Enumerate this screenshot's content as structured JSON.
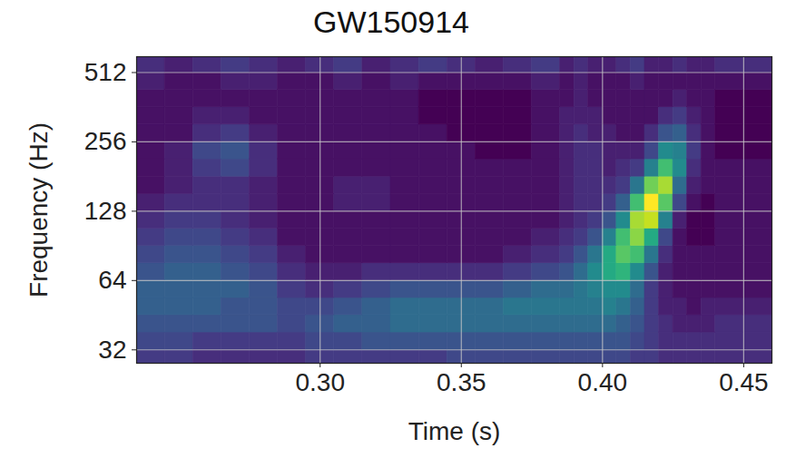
{
  "chart_data": {
    "type": "heatmap",
    "title": "GW150914",
    "x_label": "Time (s)",
    "y_label": "Frequency (Hz)",
    "xlim": [
      0.235,
      0.46
    ],
    "ylim": [
      28,
      600
    ],
    "xticks": [
      {
        "value": 0.3,
        "label": "0.30"
      },
      0.35,
      {
        "value": 0.4,
        "label": "0.40"
      },
      0.45
    ],
    "yticks": [
      32,
      64,
      128,
      256,
      512
    ],
    "log": "y",
    "grid": true,
    "color": "viridis",
    "x_edges": [
      0.235,
      0.245,
      0.255,
      0.265,
      0.275,
      0.285,
      0.295,
      0.305,
      0.315,
      0.325,
      0.335,
      0.345,
      0.355,
      0.365,
      0.375,
      0.385,
      0.39,
      0.395,
      0.4,
      0.405,
      0.41,
      0.415,
      0.42,
      0.425,
      0.43,
      0.435,
      0.44,
      0.45,
      0.46
    ],
    "y_edges": [
      26.9,
      32,
      38.1,
      45.3,
      53.8,
      64,
      76.1,
      90.5,
      107.6,
      128,
      152.2,
      181,
      215.3,
      256,
      304.4,
      362,
      430.5,
      512,
      608.9
    ],
    "z": [
      [
        6,
        6,
        5,
        5,
        5,
        5,
        6,
        6,
        6,
        6,
        6,
        7,
        7,
        7,
        7,
        7,
        7,
        7,
        7,
        7,
        6,
        6,
        5,
        5,
        5,
        5,
        5,
        5
      ],
      [
        7,
        7,
        6,
        6,
        6,
        6,
        7,
        7,
        8,
        8,
        8,
        8,
        8,
        8,
        8,
        8,
        8,
        8,
        8,
        8,
        7,
        6,
        5,
        5,
        5,
        5,
        5,
        5
      ],
      [
        8,
        8,
        8,
        8,
        8,
        7,
        8,
        9,
        9,
        10,
        10,
        10,
        10,
        10,
        10,
        10,
        10,
        10,
        10,
        9,
        8,
        6,
        5,
        4,
        4,
        4,
        5,
        5
      ],
      [
        9,
        9,
        9,
        8,
        8,
        7,
        7,
        8,
        9,
        10,
        10,
        10,
        10,
        11,
        11,
        11,
        11,
        11,
        12,
        11,
        9,
        6,
        4,
        4,
        3,
        4,
        4,
        4
      ],
      [
        9,
        9,
        9,
        9,
        8,
        6,
        5,
        6,
        7,
        8,
        8,
        8,
        8,
        9,
        10,
        10,
        11,
        12,
        13,
        13,
        10,
        6,
        4,
        3,
        3,
        3,
        3,
        3
      ],
      [
        8,
        9,
        9,
        8,
        7,
        5,
        4,
        4,
        5,
        5,
        5,
        5,
        5,
        6,
        7,
        8,
        10,
        13,
        16,
        17,
        13,
        8,
        4,
        3,
        3,
        3,
        3,
        3
      ],
      [
        7,
        8,
        8,
        7,
        6,
        4,
        3,
        3,
        3,
        3,
        3,
        3,
        3,
        4,
        5,
        6,
        8,
        11,
        16,
        19,
        18,
        11,
        5,
        3,
        3,
        3,
        3,
        3
      ],
      [
        6,
        7,
        7,
        6,
        5,
        3,
        3,
        3,
        3,
        3,
        3,
        3,
        3,
        3,
        4,
        5,
        6,
        8,
        12,
        18,
        21,
        16,
        7,
        3,
        2,
        2,
        3,
        3
      ],
      [
        5,
        6,
        6,
        5,
        4,
        3,
        3,
        3,
        3,
        3,
        3,
        3,
        3,
        3,
        3,
        4,
        5,
        6,
        8,
        13,
        22,
        23,
        12,
        4,
        2,
        2,
        3,
        3
      ],
      [
        4,
        5,
        5,
        5,
        4,
        3,
        3,
        4,
        4,
        3,
        3,
        3,
        3,
        3,
        3,
        4,
        5,
        5,
        6,
        9,
        18,
        25,
        19,
        7,
        3,
        2,
        3,
        3
      ],
      [
        3,
        4,
        5,
        5,
        4,
        3,
        3,
        4,
        4,
        3,
        3,
        3,
        3,
        3,
        3,
        4,
        5,
        5,
        5,
        6,
        11,
        20,
        22,
        10,
        4,
        3,
        3,
        3
      ],
      [
        3,
        4,
        6,
        7,
        5,
        3,
        3,
        3,
        3,
        3,
        3,
        3,
        3,
        3,
        3,
        4,
        5,
        5,
        4,
        5,
        6,
        12,
        18,
        13,
        5,
        3,
        3,
        3
      ],
      [
        3,
        4,
        7,
        8,
        5,
        3,
        3,
        3,
        3,
        3,
        3,
        3,
        2,
        2,
        3,
        4,
        5,
        5,
        4,
        4,
        4,
        7,
        13,
        12,
        6,
        3,
        2,
        2
      ],
      [
        3,
        3,
        5,
        6,
        4,
        3,
        3,
        3,
        3,
        3,
        3,
        2,
        2,
        2,
        3,
        4,
        5,
        4,
        4,
        3,
        3,
        5,
        8,
        9,
        5,
        3,
        2,
        2
      ],
      [
        3,
        3,
        4,
        4,
        3,
        3,
        3,
        3,
        3,
        3,
        2,
        2,
        2,
        2,
        3,
        4,
        4,
        4,
        3,
        3,
        3,
        3,
        5,
        6,
        4,
        3,
        2,
        2
      ],
      [
        3,
        3,
        3,
        3,
        3,
        3,
        3,
        3,
        3,
        3,
        2,
        2,
        2,
        2,
        3,
        3,
        4,
        3,
        3,
        3,
        3,
        3,
        3,
        4,
        3,
        3,
        2,
        2
      ],
      [
        4,
        3,
        3,
        4,
        4,
        3,
        3,
        4,
        3,
        4,
        3,
        3,
        3,
        3,
        4,
        3,
        4,
        3,
        3,
        3,
        4,
        3,
        3,
        3,
        3,
        3,
        3,
        3
      ],
      [
        5,
        4,
        5,
        6,
        5,
        4,
        5,
        6,
        4,
        5,
        6,
        5,
        4,
        5,
        6,
        4,
        5,
        4,
        4,
        5,
        6,
        4,
        4,
        5,
        4,
        4,
        5,
        5
      ]
    ]
  }
}
